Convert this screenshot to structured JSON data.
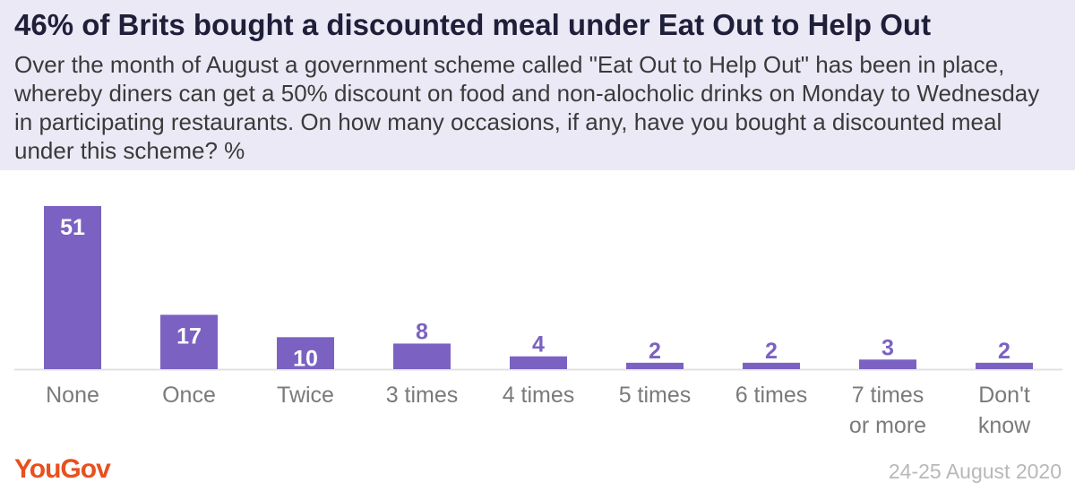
{
  "header": {
    "title": "46% of Brits bought a discounted meal under Eat Out to Help Out",
    "subtitle": "Over the month of August a government scheme called \"Eat Out to Help Out\" has been in place, whereby diners can get a 50% discount on food and non-alocholic drinks on Monday to Wednesday in participating restaurants. On how many occasions, if any, have you bought a discounted meal under this scheme? %"
  },
  "footer": {
    "brand": "YouGov",
    "date": "24-25 August 2020"
  },
  "colors": {
    "bar": "#7b62c2",
    "header_bg": "#ece9f6",
    "brand": "#e8501e"
  },
  "chart_data": {
    "type": "bar",
    "categories": [
      [
        "None"
      ],
      [
        "Once"
      ],
      [
        "Twice"
      ],
      [
        "3 times"
      ],
      [
        "4 times"
      ],
      [
        "5 times"
      ],
      [
        "6 times"
      ],
      [
        "7 times",
        "or more"
      ],
      [
        "Don't",
        "know"
      ]
    ],
    "values": [
      51,
      17,
      10,
      8,
      4,
      2,
      2,
      3,
      2
    ],
    "ylim": [
      0,
      51
    ],
    "grid": false,
    "legend": "none"
  }
}
